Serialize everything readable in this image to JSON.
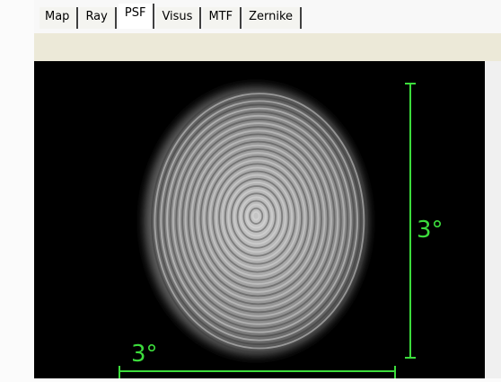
{
  "tabs": [
    "Map",
    "Ray",
    "PSF",
    "Visus",
    "MTF",
    "Zernike"
  ],
  "scale_bars": {
    "vertical": "3°",
    "horizontal": "3°"
  }
}
